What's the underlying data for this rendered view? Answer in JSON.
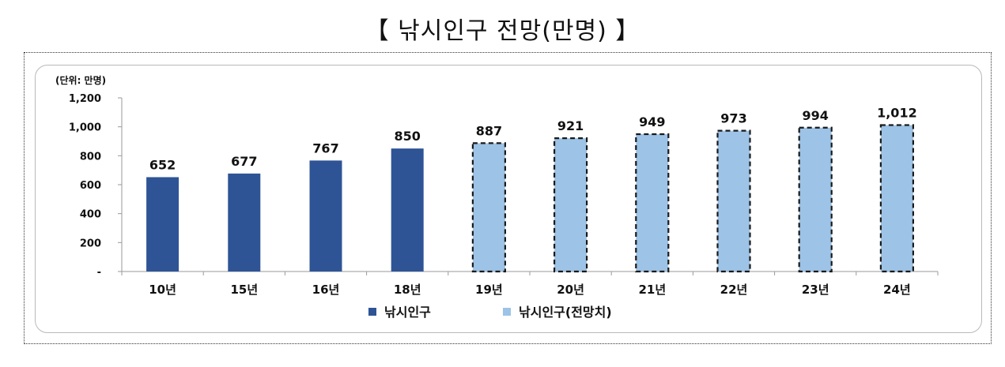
{
  "title": "【 낚시인구 전망(만명) 】",
  "chart_data": {
    "type": "bar",
    "unit_label": "(단위: 만명)",
    "categories": [
      "10년",
      "15년",
      "16년",
      "18년",
      "19년",
      "20년",
      "21년",
      "22년",
      "23년",
      "24년"
    ],
    "values": [
      652,
      677,
      767,
      850,
      887,
      921,
      949,
      973,
      994,
      1012
    ],
    "value_labels": [
      "652",
      "677",
      "767",
      "850",
      "887",
      "921",
      "949",
      "973",
      "994",
      "1,012"
    ],
    "series_index": [
      0,
      0,
      0,
      0,
      1,
      1,
      1,
      1,
      1,
      1
    ],
    "series": [
      {
        "name": "낚시인구",
        "color": "#2e5496",
        "style": "solid"
      },
      {
        "name": "낚시인구(전망치)",
        "color": "#9dc3e6",
        "style": "dashed-border"
      }
    ],
    "ylim": [
      0,
      1200
    ],
    "yticks": [
      0,
      200,
      400,
      600,
      800,
      1000,
      1200
    ],
    "ytick_labels": [
      "-",
      "200",
      "400",
      "600",
      "800",
      "1,000",
      "1,200"
    ],
    "grid": false,
    "legend_position": "bottom"
  }
}
